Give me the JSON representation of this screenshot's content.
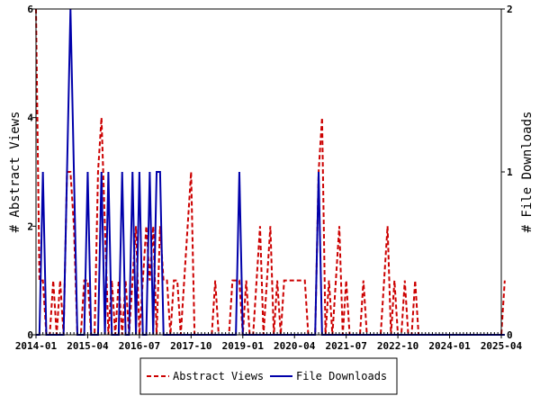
{
  "chart_data": {
    "type": "line",
    "title": "",
    "xlabel": "",
    "ylabel_left": "# Abstract Views",
    "ylabel_right": "# File Downloads",
    "ylim_left": [
      0,
      6
    ],
    "ylim_right": [
      0,
      2
    ],
    "yticks_left": [
      "0",
      "2",
      "4",
      "6"
    ],
    "yticks_right": [
      "0",
      "1",
      "2"
    ],
    "xticks": [
      "2014-01",
      "2015-04",
      "2016-07",
      "2017-10",
      "2019-01",
      "2020-04",
      "2021-07",
      "2022-10",
      "2024-01",
      "2025-04"
    ],
    "x_start": "2014-01",
    "legend_placement": "bottom",
    "series": [
      {
        "name": "Abstract Views",
        "axis": "left",
        "color": "#cc0000",
        "dash": true,
        "x": [
          "2014-01",
          "2014-02",
          "2014-03",
          "2014-04",
          "2014-05",
          "2014-06",
          "2014-07",
          "2014-08",
          "2014-09",
          "2014-10",
          "2014-11",
          "2014-12",
          "2015-01",
          "2015-02",
          "2015-03",
          "2015-04",
          "2015-05",
          "2015-06",
          "2015-07",
          "2015-08",
          "2015-09",
          "2015-10",
          "2015-11",
          "2015-12",
          "2016-01",
          "2016-02",
          "2016-03",
          "2016-04",
          "2016-05",
          "2016-06",
          "2016-07",
          "2016-08",
          "2016-09",
          "2016-10",
          "2016-11",
          "2016-12",
          "2017-01",
          "2017-02",
          "2017-03",
          "2017-04",
          "2017-05",
          "2017-06",
          "2017-07",
          "2017-08",
          "2017-09",
          "2017-10",
          "2017-11",
          "2017-12",
          "2018-01",
          "2018-02",
          "2018-03",
          "2018-04",
          "2018-05",
          "2018-06",
          "2018-07",
          "2018-08",
          "2018-09",
          "2018-10",
          "2018-11",
          "2018-12",
          "2019-01",
          "2019-02",
          "2019-03",
          "2019-04",
          "2019-05",
          "2019-06",
          "2019-07",
          "2019-08",
          "2019-09",
          "2019-10",
          "2019-11",
          "2019-12",
          "2020-01",
          "2020-02",
          "2020-03",
          "2020-04",
          "2020-05",
          "2020-06",
          "2020-07",
          "2020-08",
          "2020-09",
          "2020-10",
          "2020-11",
          "2020-12",
          "2021-01",
          "2021-02",
          "2021-03",
          "2021-04",
          "2021-05",
          "2021-06",
          "2021-07",
          "2021-08",
          "2021-09",
          "2021-10",
          "2021-11",
          "2021-12",
          "2022-01",
          "2022-02",
          "2022-03",
          "2022-04",
          "2022-05",
          "2022-06",
          "2022-07",
          "2022-08",
          "2022-09",
          "2022-10",
          "2022-11",
          "2022-12",
          "2023-01",
          "2023-02",
          "2023-03",
          "2023-04",
          "2023-05",
          "2023-06",
          "2023-07",
          "2023-08",
          "2023-09",
          "2023-10",
          "2023-11",
          "2023-12",
          "2024-01",
          "2024-02",
          "2024-03",
          "2024-04",
          "2024-05",
          "2024-06",
          "2024-07",
          "2024-08",
          "2024-09",
          "2024-10",
          "2024-11",
          "2024-12",
          "2025-01",
          "2025-02",
          "2025-03",
          "2025-04",
          "2025-05"
        ],
        "values": [
          6,
          1,
          1,
          0,
          0,
          1,
          0,
          1,
          0,
          3,
          3,
          2,
          0,
          0,
          1,
          1,
          0,
          0,
          3,
          4,
          2,
          0,
          1,
          0,
          1,
          0,
          1,
          0,
          1,
          2,
          0,
          1,
          2,
          1,
          2,
          0,
          2,
          1,
          1,
          0,
          1,
          1,
          0,
          1,
          2,
          3,
          0,
          0,
          0,
          0,
          0,
          0,
          1,
          0,
          0,
          0,
          0,
          1,
          1,
          1,
          0,
          1,
          0,
          0,
          1,
          2,
          0,
          1,
          2,
          0,
          1,
          0,
          1,
          1,
          1,
          1,
          1,
          1,
          1,
          0,
          0,
          0,
          3,
          4,
          0,
          1,
          0,
          1,
          2,
          0,
          1,
          0,
          0,
          0,
          0,
          1,
          0,
          0,
          0,
          0,
          0,
          1,
          2,
          0,
          1,
          0,
          0,
          1,
          0,
          0,
          1,
          0,
          0,
          0,
          0,
          0,
          0,
          0,
          0,
          0,
          0,
          0,
          0,
          0,
          0,
          0,
          0,
          0,
          0,
          0,
          0,
          0,
          0,
          0,
          0,
          0,
          1
        ]
      },
      {
        "name": "File Downloads",
        "axis": "right",
        "color": "#0000aa",
        "dash": false,
        "x": [
          "2014-01",
          "2014-02",
          "2014-03",
          "2014-04",
          "2014-05",
          "2014-06",
          "2014-07",
          "2014-08",
          "2014-09",
          "2014-10",
          "2014-11",
          "2014-12",
          "2015-01",
          "2015-02",
          "2015-03",
          "2015-04",
          "2015-05",
          "2015-06",
          "2015-07",
          "2015-08",
          "2015-09",
          "2015-10",
          "2015-11",
          "2015-12",
          "2016-01",
          "2016-02",
          "2016-03",
          "2016-04",
          "2016-05",
          "2016-06",
          "2016-07",
          "2016-08",
          "2016-09",
          "2016-10",
          "2016-11",
          "2016-12",
          "2017-01",
          "2017-02",
          "2017-03",
          "2017-04",
          "2017-05",
          "2017-06",
          "2017-07",
          "2017-08",
          "2017-09",
          "2017-10",
          "2017-11",
          "2017-12",
          "2018-01",
          "2018-02",
          "2018-03",
          "2018-04",
          "2018-05",
          "2018-06",
          "2018-07",
          "2018-08",
          "2018-09",
          "2018-10",
          "2018-11",
          "2018-12",
          "2019-01",
          "2019-02",
          "2019-03",
          "2019-04",
          "2019-05",
          "2019-06",
          "2019-07",
          "2019-08",
          "2019-09",
          "2019-10",
          "2019-11",
          "2019-12",
          "2020-01",
          "2020-02",
          "2020-03",
          "2020-04",
          "2020-05",
          "2020-06",
          "2020-07",
          "2020-08",
          "2020-09",
          "2020-10",
          "2020-11",
          "2020-12",
          "2021-01",
          "2021-02",
          "2021-03",
          "2021-04",
          "2021-05",
          "2021-06",
          "2021-07",
          "2021-08",
          "2021-09",
          "2021-10",
          "2021-11",
          "2021-12",
          "2022-01",
          "2022-02",
          "2022-03",
          "2022-04",
          "2022-05",
          "2022-06",
          "2022-07",
          "2022-08",
          "2022-09",
          "2022-10",
          "2022-11",
          "2022-12",
          "2023-01",
          "2023-02",
          "2023-03",
          "2023-04",
          "2023-05",
          "2023-06",
          "2023-07",
          "2023-08",
          "2023-09",
          "2023-10",
          "2023-11",
          "2023-12",
          "2024-01",
          "2024-02",
          "2024-03",
          "2024-04",
          "2024-05",
          "2024-06",
          "2024-07",
          "2024-08",
          "2024-09",
          "2024-10",
          "2024-11",
          "2024-12",
          "2025-01",
          "2025-02",
          "2025-03",
          "2025-04",
          "2025-05"
        ],
        "values": [
          0,
          0,
          1,
          0,
          0,
          0,
          0,
          0,
          0,
          1,
          2,
          1,
          0,
          0,
          0,
          1,
          0,
          0,
          0,
          1,
          0,
          1,
          0,
          0,
          0,
          1,
          0,
          0,
          1,
          0,
          1,
          0,
          0,
          1,
          0,
          1,
          1,
          0,
          0,
          0,
          0,
          0,
          0,
          0,
          0,
          0,
          0,
          0,
          0,
          0,
          0,
          0,
          0,
          0,
          0,
          0,
          0,
          0,
          0,
          1,
          0,
          0,
          0,
          0,
          0,
          0,
          0,
          0,
          0,
          0,
          0,
          0,
          0,
          0,
          0,
          0,
          0,
          0,
          0,
          0,
          0,
          0,
          1,
          0,
          0,
          0,
          0,
          0,
          0,
          0,
          0,
          0,
          0,
          0,
          0,
          0,
          0,
          0,
          0,
          0,
          0,
          0,
          0,
          0,
          0,
          0,
          0,
          0,
          0,
          0,
          0,
          0,
          0,
          0,
          0,
          0,
          0,
          0,
          0,
          0,
          0,
          0,
          0,
          0,
          0,
          0,
          0,
          0,
          0,
          0,
          0,
          0,
          0,
          0,
          0,
          0,
          0
        ]
      }
    ]
  }
}
